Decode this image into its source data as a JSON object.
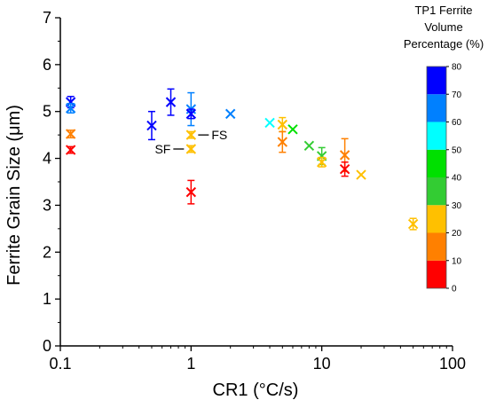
{
  "chart_data": {
    "type": "scatter",
    "title": "",
    "xlabel": "CR1 (°C/s)",
    "ylabel": "Ferrite Grain Size (μm)",
    "xscale": "log",
    "xlim": [
      0.1,
      100
    ],
    "ylim": [
      0,
      7
    ],
    "x_ticks": [
      0.1,
      1,
      10,
      100
    ],
    "x_tick_labels": [
      "0.1",
      "1",
      "10",
      "100"
    ],
    "y_ticks": [
      0,
      1,
      2,
      3,
      4,
      5,
      6,
      7
    ],
    "y_tick_labels": [
      "0",
      "1",
      "2",
      "3",
      "4",
      "5",
      "6",
      "7"
    ],
    "grid": false,
    "marker": "x",
    "colorbar": {
      "title_lines": [
        "TP1 Ferrite",
        "Volume",
        "Percentage (%)"
      ],
      "min": 0,
      "max": 80,
      "ticks": [
        0,
        10,
        20,
        30,
        40,
        50,
        60,
        70,
        80
      ],
      "tick_labels": [
        "0",
        "10",
        "20",
        "30",
        "40",
        "50",
        "60",
        "70",
        "80"
      ],
      "bands": [
        {
          "from": 0,
          "to": 10,
          "color": "#ff0000"
        },
        {
          "from": 10,
          "to": 20,
          "color": "#ff8000"
        },
        {
          "from": 20,
          "to": 30,
          "color": "#ffc000"
        },
        {
          "from": 30,
          "to": 40,
          "color": "#33cc33"
        },
        {
          "from": 40,
          "to": 50,
          "color": "#00e000"
        },
        {
          "from": 50,
          "to": 60,
          "color": "#00ffff"
        },
        {
          "from": 60,
          "to": 70,
          "color": "#0080ff"
        },
        {
          "from": 70,
          "to": 80,
          "color": "#0000ff"
        }
      ]
    },
    "points": [
      {
        "x": 0.12,
        "y": 5.2,
        "err": 0.12,
        "color": "#0000ff"
      },
      {
        "x": 0.12,
        "y": 5.07,
        "err": 0.1,
        "color": "#0080ff"
      },
      {
        "x": 0.12,
        "y": 4.52,
        "err": 0.08,
        "color": "#ff8000"
      },
      {
        "x": 0.12,
        "y": 4.18,
        "err": 0.07,
        "color": "#ff0000"
      },
      {
        "x": 0.5,
        "y": 4.7,
        "err": 0.3,
        "color": "#0000ff"
      },
      {
        "x": 0.7,
        "y": 5.2,
        "err": 0.28,
        "color": "#0000ff"
      },
      {
        "x": 1.0,
        "y": 5.05,
        "err": 0.35,
        "color": "#0080ff"
      },
      {
        "x": 1.0,
        "y": 4.95,
        "err": 0.1,
        "color": "#0000ff"
      },
      {
        "x": 1.0,
        "y": 4.5,
        "err": 0.07,
        "color": "#ffc000"
      },
      {
        "x": 1.0,
        "y": 4.2,
        "err": 0.07,
        "color": "#ffc000"
      },
      {
        "x": 1.0,
        "y": 3.28,
        "err": 0.25,
        "color": "#ff0000"
      },
      {
        "x": 2.0,
        "y": 4.95,
        "err": 0.0,
        "color": "#0080ff"
      },
      {
        "x": 4.0,
        "y": 4.76,
        "err": 0.0,
        "color": "#00ffff"
      },
      {
        "x": 5.0,
        "y": 4.72,
        "err": 0.15,
        "color": "#ffc000"
      },
      {
        "x": 5.0,
        "y": 4.35,
        "err": 0.22,
        "color": "#ff8000"
      },
      {
        "x": 6.0,
        "y": 4.62,
        "err": 0.0,
        "color": "#00e000"
      },
      {
        "x": 8.0,
        "y": 4.27,
        "err": 0.0,
        "color": "#33cc33"
      },
      {
        "x": 10.0,
        "y": 4.05,
        "err": 0.18,
        "color": "#33cc33"
      },
      {
        "x": 10.0,
        "y": 3.92,
        "err": 0.1,
        "color": "#ffc000"
      },
      {
        "x": 15.0,
        "y": 4.07,
        "err": 0.35,
        "color": "#ff8000"
      },
      {
        "x": 15.0,
        "y": 3.77,
        "err": 0.15,
        "color": "#ff0000"
      },
      {
        "x": 20.0,
        "y": 3.65,
        "err": 0.0,
        "color": "#ffc000"
      },
      {
        "x": 50.0,
        "y": 2.6,
        "err": 0.12,
        "color": "#ffc000"
      }
    ],
    "annotations": [
      {
        "text": "FS",
        "point_x": 1.0,
        "point_y": 4.5
      },
      {
        "text": "SF",
        "point_x": 1.0,
        "point_y": 4.2
      }
    ]
  }
}
